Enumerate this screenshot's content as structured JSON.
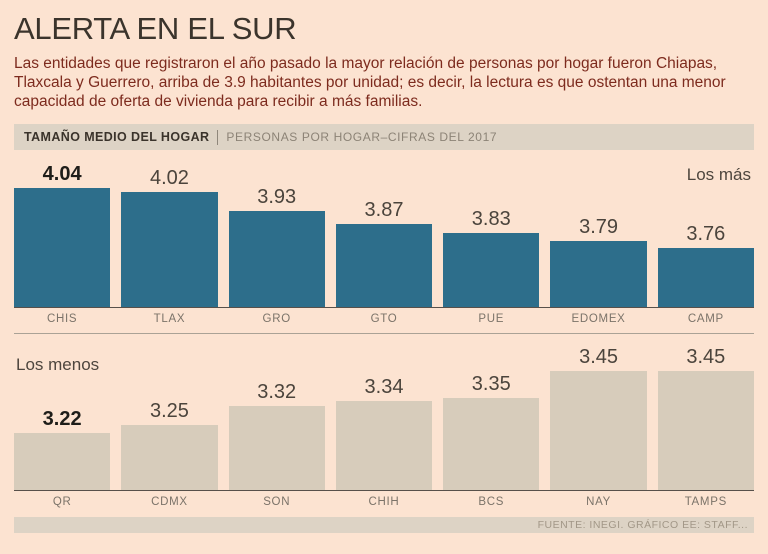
{
  "page": {
    "title": "ALERTA EN EL SUR",
    "description": "Las entidades que registraron el año pasado la mayor relación de personas por hogar fueron Chiapas, Tlaxcala y Guerrero, arriba de 3.9 habitantes por unidad; es decir, la lectura es que ostentan una menor capacidad de oferta de vivienda para recibir a más familias."
  },
  "chart_header": {
    "title": "TAMAÑO MEDIO DEL HOGAR",
    "subtitle": "PERSONAS POR HOGAR–CIFRAS DEL 2017"
  },
  "chart_data": [
    {
      "type": "bar",
      "title": "Los más",
      "categories": [
        "CHIS",
        "TLAX",
        "GRO",
        "GTO",
        "PUE",
        "EDOMEX",
        "CAMP"
      ],
      "values": [
        4.04,
        4.02,
        3.93,
        3.87,
        3.83,
        3.79,
        3.76
      ],
      "emphasis_index": 0,
      "bar_color": "#2d6e8b",
      "ylim": [
        3.48,
        4.04
      ],
      "xlabel": "",
      "ylabel": "",
      "grid": false,
      "legend": "none",
      "annotation_position": "top-right"
    },
    {
      "type": "bar",
      "title": "Los menos",
      "categories": [
        "QR",
        "CDMX",
        "SON",
        "CHIH",
        "BCS",
        "NAY",
        "TAMPS"
      ],
      "values": [
        3.22,
        3.25,
        3.32,
        3.34,
        3.35,
        3.45,
        3.45
      ],
      "emphasis_index": 0,
      "bar_color": "#d7ccbb",
      "ylim": [
        3.01,
        3.45
      ],
      "xlabel": "",
      "ylabel": "",
      "grid": false,
      "legend": "none",
      "annotation_position": "top-left"
    }
  ],
  "footer": {
    "source": "FUENTE: INEGI.  GRÁFICO EE: STAFF..."
  },
  "colors": {
    "background": "#fce3d1",
    "bar_top": "#2d6e8b",
    "bar_bottom": "#d7ccbb",
    "strip_background": "#ddd3c5",
    "intro_text": "#7d2b1e",
    "title_text": "#3b342c"
  }
}
